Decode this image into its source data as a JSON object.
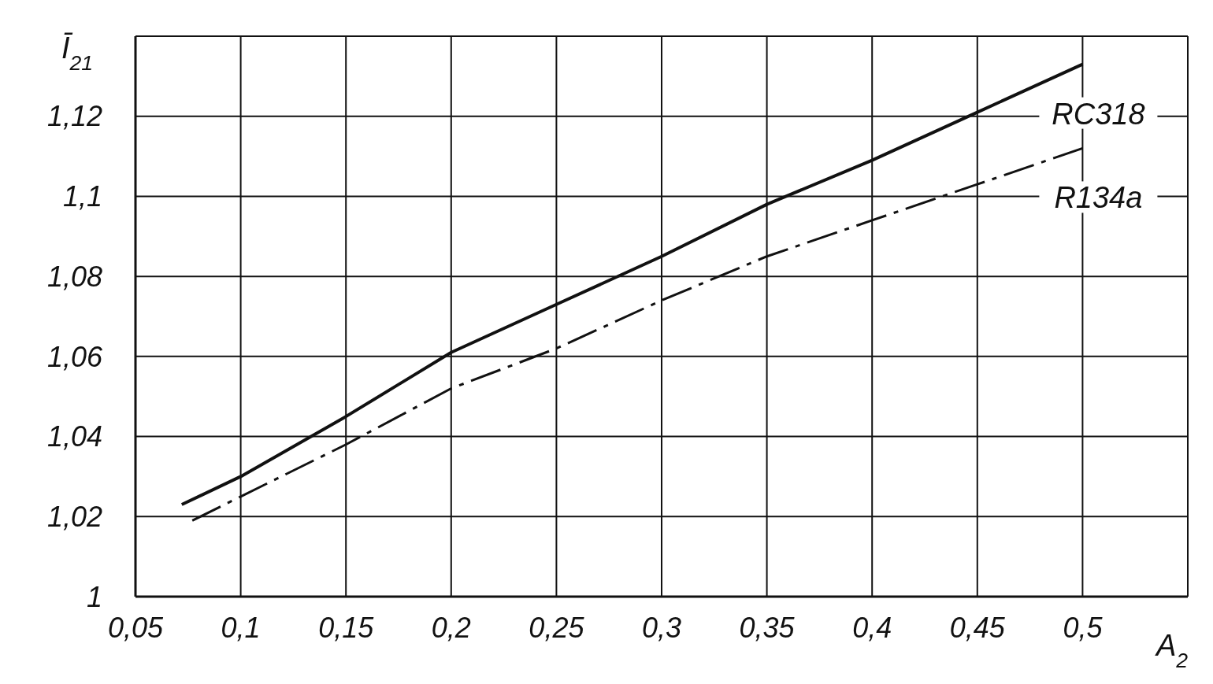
{
  "chart_data": {
    "type": "line",
    "xlabel": "A$_{2}$",
    "ylabel": "Ī$_{21}$",
    "xlim": [
      0.05,
      0.55
    ],
    "xticks": [
      {
        "value": 0.05,
        "label": "0,05"
      },
      {
        "value": 0.1,
        "label": "0,1"
      },
      {
        "value": 0.15,
        "label": "0,15"
      },
      {
        "value": 0.2,
        "label": "0,2"
      },
      {
        "value": 0.25,
        "label": "0,25"
      },
      {
        "value": 0.3,
        "label": "0,3"
      },
      {
        "value": 0.35,
        "label": "0,35"
      },
      {
        "value": 0.4,
        "label": "0,4"
      },
      {
        "value": 0.45,
        "label": "0,45"
      },
      {
        "value": 0.5,
        "label": "0,5"
      },
      {
        "value": 0.55,
        "label": null
      }
    ],
    "ylim": [
      1,
      1.14
    ],
    "yticks": [
      1,
      {
        "value": 1.02,
        "label": "1,02"
      },
      {
        "value": 1.04,
        "label": "1,04"
      },
      {
        "value": 1.06,
        "label": "1,06"
      },
      {
        "value": 1.08,
        "label": "1,08"
      },
      {
        "value": 1.1,
        "label": "1,1"
      },
      {
        "value": 1.12,
        "label": "1,12"
      },
      {
        "value": 1.14,
        "label": null
      }
    ],
    "grid": true,
    "marker": "none",
    "series": [
      {
        "name": "RC318",
        "color": "#111111",
        "line_style": "solid",
        "x": [
          0.072,
          0.1,
          0.15,
          0.2,
          0.25,
          0.3,
          0.35,
          0.4,
          0.45,
          0.5
        ],
        "values": [
          1.023,
          1.03,
          1.045,
          1.061,
          1.073,
          1.085,
          1.098,
          1.109,
          1.121,
          1.133
        ]
      },
      {
        "name": "R134a",
        "color": "#111111",
        "line_style": "dashed",
        "x": [
          0.077,
          0.1,
          0.15,
          0.2,
          0.25,
          0.3,
          0.35,
          0.4,
          0.45,
          0.5
        ],
        "values": [
          1.019,
          1.025,
          1.038,
          1.052,
          1.062,
          1.074,
          1.085,
          1.094,
          1.103,
          1.112
        ]
      }
    ]
  }
}
